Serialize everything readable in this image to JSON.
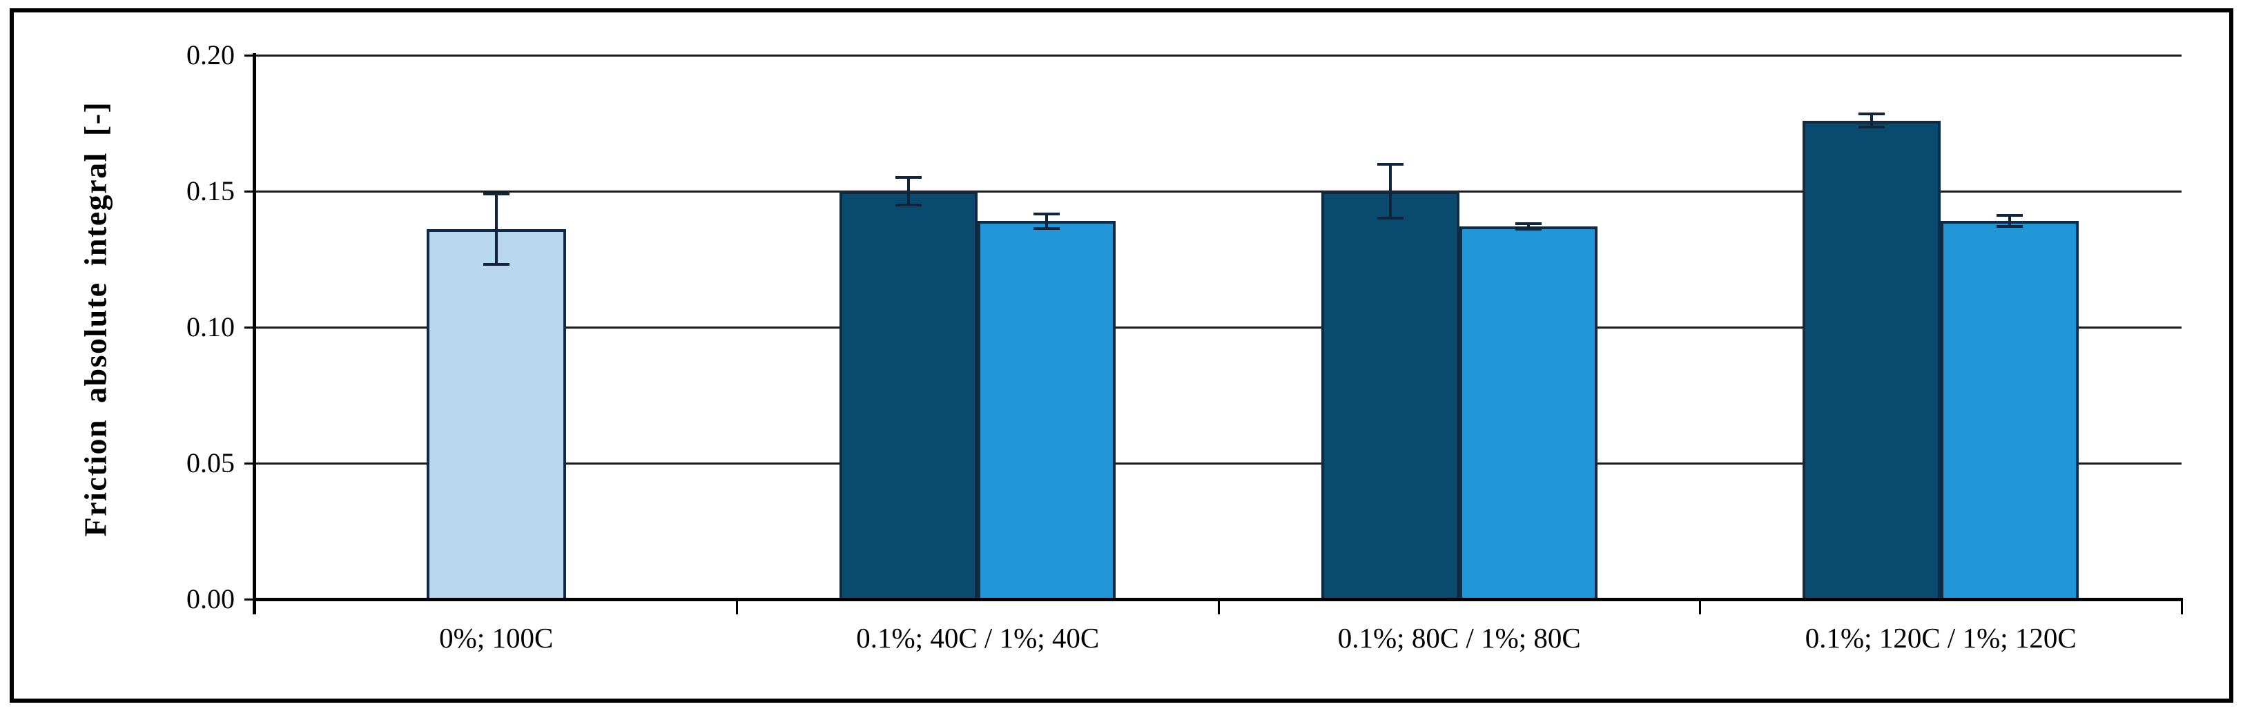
{
  "chart_data": {
    "type": "bar",
    "title": "",
    "ylabel": "Friction absolute integral [-]",
    "xlabel": "",
    "ylim": [
      0,
      0.2
    ],
    "yticks": [
      "0.00",
      "0.05",
      "0.10",
      "0.15",
      "0.20"
    ],
    "grid": true,
    "legend": false,
    "categories": [
      "0%; 100C",
      "0.1%; 40C / 1%; 40C",
      "0.1%; 80C / 1%; 80C",
      "0.1%; 120C / 1%; 120C"
    ],
    "bar_colors": {
      "pale": "#B9D7ED",
      "dark": "#0B4A6F",
      "medium": "#2196D6",
      "border": "#0E2B45"
    },
    "series": [
      {
        "name": "pale-blue-reference-bar",
        "color_key": "pale",
        "values": [
          0.136,
          null,
          null,
          null
        ],
        "errors": [
          0.013,
          null,
          null,
          null
        ]
      },
      {
        "name": "dark-blue-bars",
        "color_key": "dark",
        "values": [
          null,
          0.15,
          0.15,
          0.176
        ],
        "errors": [
          null,
          0.005,
          0.01,
          0.0025
        ]
      },
      {
        "name": "light-blue-bars",
        "color_key": "medium",
        "values": [
          null,
          0.139,
          0.137,
          0.139
        ],
        "errors": [
          null,
          0.0026,
          0.001,
          0.002
        ]
      }
    ]
  }
}
